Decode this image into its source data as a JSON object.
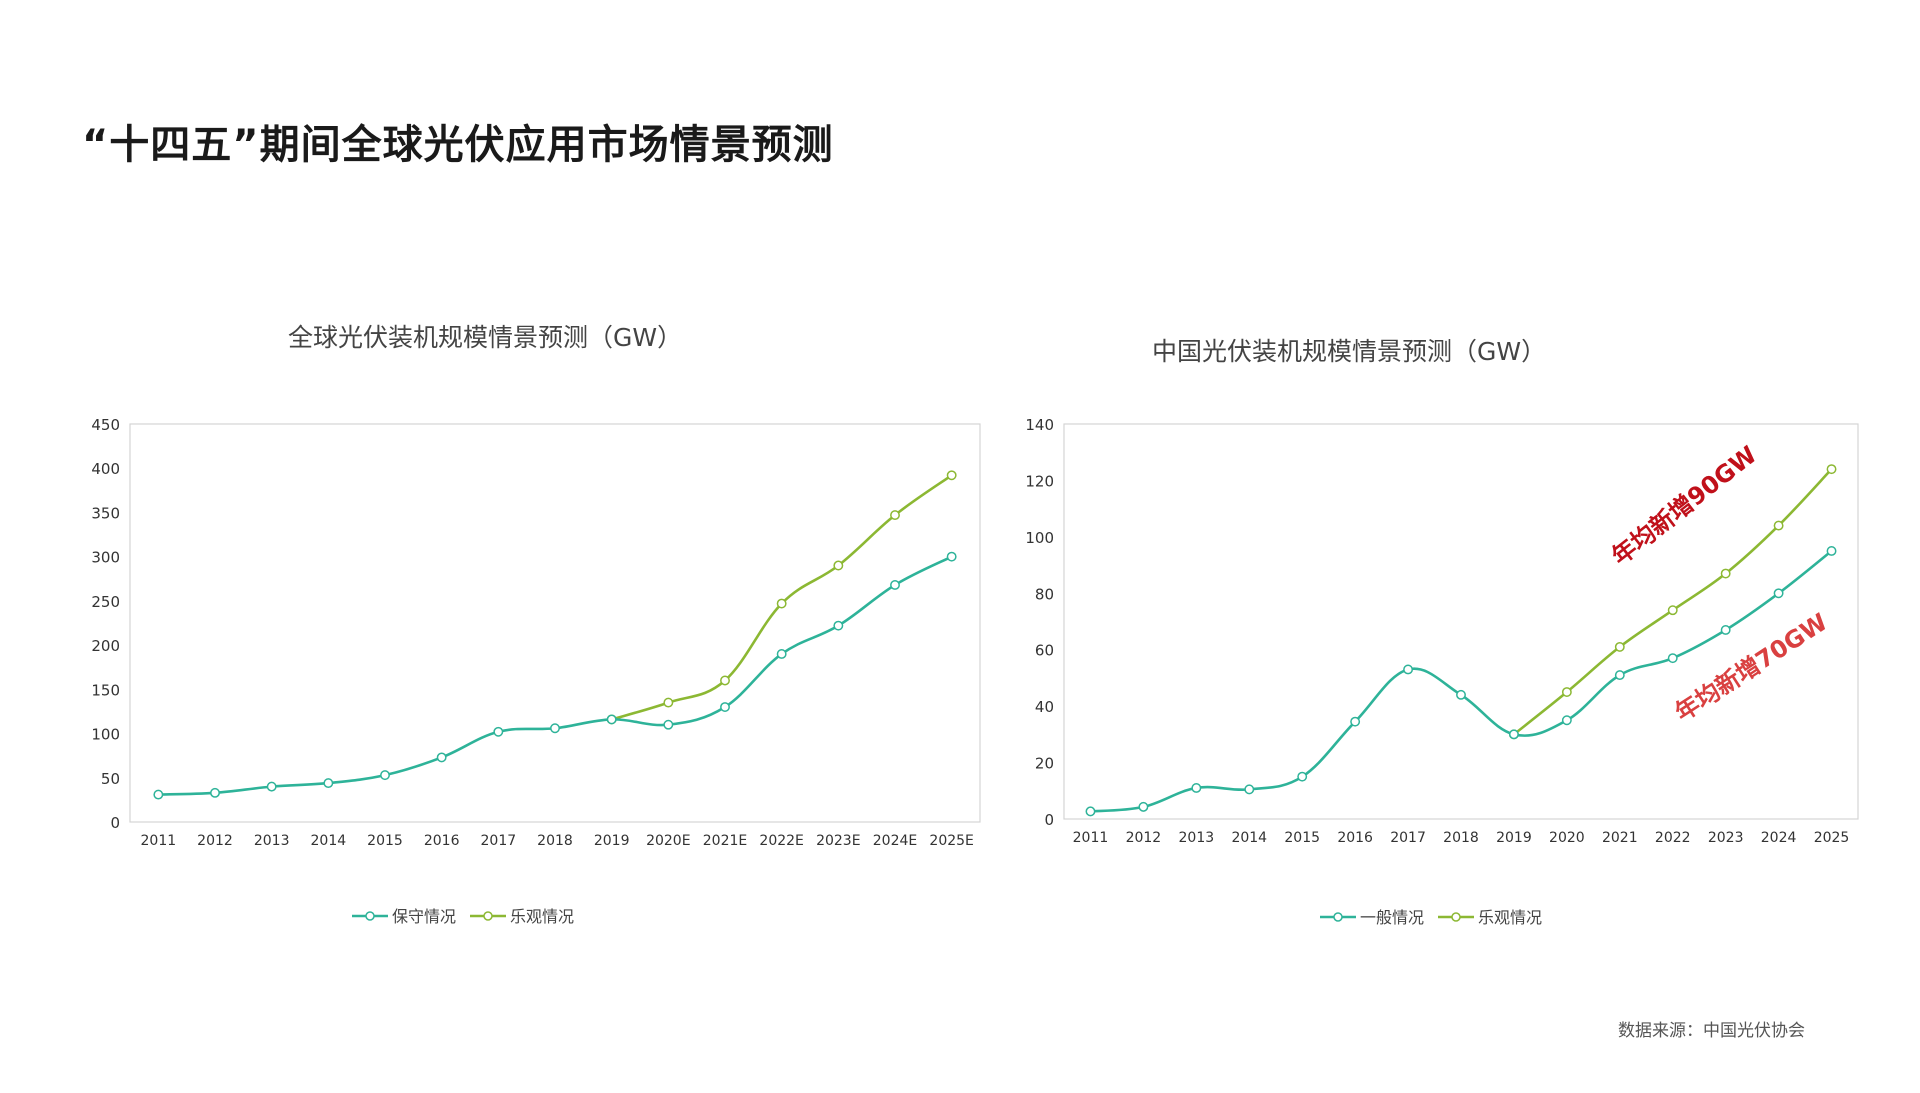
{
  "page_title": "“十四五”期间全球光伏应用市场情景预测",
  "source_note": "数据来源：中国光伏协会",
  "colors": {
    "teal": "#2eb399",
    "olive": "#8cb833",
    "annotation_dark_red": "#c0101a",
    "annotation_red": "#d94040"
  },
  "chart_data": [
    {
      "type": "line",
      "title": "全球光伏装机规模情景预测（GW）",
      "xlabel": "",
      "ylabel": "",
      "categories": [
        "2011",
        "2012",
        "2013",
        "2014",
        "2015",
        "2016",
        "2017",
        "2018",
        "2019",
        "2020E",
        "2021E",
        "2022E",
        "2023E",
        "2024E",
        "2025E"
      ],
      "ylim": [
        0,
        450
      ],
      "yticks": [
        0,
        50,
        100,
        150,
        200,
        250,
        300,
        350,
        400,
        450
      ],
      "grid": false,
      "legend_position": "bottom",
      "series": [
        {
          "name": "保守情况",
          "color": "#2eb399",
          "values": [
            31,
            33,
            40,
            44,
            53,
            73,
            102,
            106,
            116,
            110,
            130,
            190,
            222,
            268,
            300
          ]
        },
        {
          "name": "乐观情况",
          "color": "#8cb833",
          "values": [
            null,
            null,
            null,
            null,
            null,
            null,
            null,
            null,
            116,
            135,
            160,
            247,
            290,
            347,
            392
          ]
        }
      ]
    },
    {
      "type": "line",
      "title": "中国光伏装机规模情景预测（GW）",
      "xlabel": "",
      "ylabel": "",
      "categories": [
        "2011",
        "2012",
        "2013",
        "2014",
        "2015",
        "2016",
        "2017",
        "2018",
        "2019",
        "2020",
        "2021",
        "2022",
        "2023",
        "2024",
        "2025"
      ],
      "ylim": [
        0,
        140
      ],
      "yticks": [
        0,
        20,
        40,
        60,
        80,
        100,
        120,
        140
      ],
      "grid": false,
      "legend_position": "bottom",
      "series": [
        {
          "name": "一般情况",
          "color": "#2eb399",
          "values": [
            2.7,
            4.3,
            11,
            10.5,
            15,
            34.5,
            53,
            44,
            30,
            35,
            51,
            57,
            67,
            80,
            95
          ]
        },
        {
          "name": "乐观情况",
          "color": "#8cb833",
          "values": [
            null,
            null,
            null,
            null,
            null,
            null,
            null,
            null,
            30,
            45,
            61,
            74,
            87,
            104,
            124
          ]
        }
      ],
      "annotations": [
        {
          "text": "年均新增90GW",
          "color": "#c0101a"
        },
        {
          "text": "年均新增70GW",
          "color": "#d94040"
        }
      ]
    }
  ]
}
